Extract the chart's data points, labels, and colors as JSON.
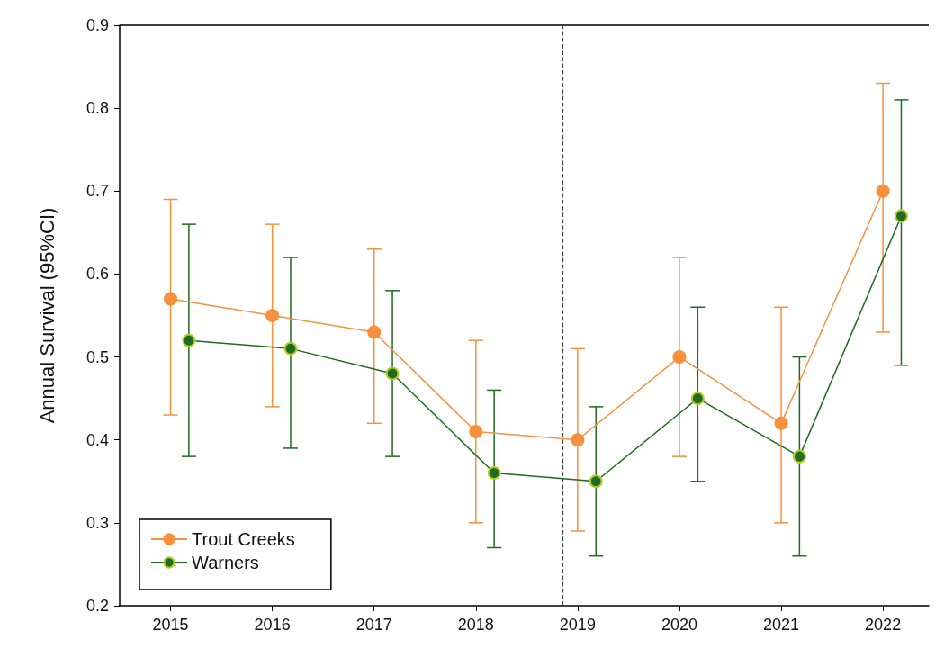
{
  "chart_data": {
    "type": "line",
    "ylabel": "Annual Survival (95%CI)",
    "xlim": [
      2014.5,
      2022.45
    ],
    "xticks": [
      2015,
      2016,
      2017,
      2018,
      2019,
      2020,
      2021,
      2022
    ],
    "ylim": [
      0.2,
      0.9
    ],
    "yticks": [
      0.2,
      0.3,
      0.4,
      0.5,
      0.6,
      0.7,
      0.8,
      0.9
    ],
    "series": [
      {
        "name": "Trout Creeks",
        "color": "#f7913d",
        "x": [
          2015,
          2016,
          2017,
          2018,
          2019,
          2020,
          2021,
          2022
        ],
        "values": [
          0.57,
          0.55,
          0.53,
          0.41,
          0.4,
          0.5,
          0.42,
          0.7
        ],
        "errors": [
          [
            0.43,
            0.69
          ],
          [
            0.44,
            0.66
          ],
          [
            0.42,
            0.63
          ],
          [
            0.3,
            0.52
          ],
          [
            0.29,
            0.51
          ],
          [
            0.38,
            0.62
          ],
          [
            0.3,
            0.56
          ],
          [
            0.53,
            0.83
          ]
        ]
      },
      {
        "name": "Warners",
        "color": "#1f6b1f",
        "x": [
          2015.18,
          2016.18,
          2017.18,
          2018.18,
          2019.18,
          2020.18,
          2021.18,
          2022.18
        ],
        "values": [
          0.52,
          0.51,
          0.48,
          0.36,
          0.35,
          0.45,
          0.38,
          0.67
        ],
        "errors": [
          [
            0.38,
            0.66
          ],
          [
            0.39,
            0.62
          ],
          [
            0.38,
            0.58
          ],
          [
            0.27,
            0.46
          ],
          [
            0.26,
            0.44
          ],
          [
            0.35,
            0.56
          ],
          [
            0.26,
            0.5
          ],
          [
            0.49,
            0.81
          ]
        ]
      }
    ],
    "ref_lines": [
      {
        "axis": "x",
        "value": 2018.85,
        "color": "#444444",
        "line_style": "dashed"
      }
    ],
    "legend": "bottom left",
    "marker": "circle",
    "grid": false
  }
}
